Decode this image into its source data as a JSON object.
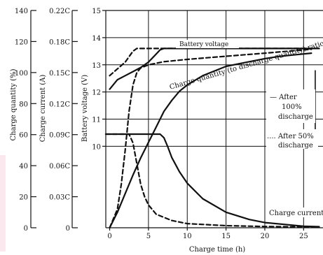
{
  "chart_data": {
    "type": "line",
    "title": "",
    "xlabel": "Charge time (h)",
    "xlim": [
      -0.5,
      27.5
    ],
    "x_ticks": [
      0,
      5,
      10,
      15,
      20,
      25
    ],
    "y_axes": [
      {
        "id": "quantity",
        "label": "Charge quantity (%)",
        "ticks": [
          "0",
          "20",
          "40",
          "60",
          "80",
          "100",
          "120",
          "140"
        ]
      },
      {
        "id": "current",
        "label": "Charge current (A)",
        "ticks": [
          "0",
          "0.03C",
          "0.06C",
          "0.09C",
          "0.12C",
          "0.15C",
          "0.18C",
          "0.22C"
        ]
      },
      {
        "id": "voltage",
        "label": "Battery voltage (V)",
        "ticks": [
          "10",
          "11",
          "12",
          "13",
          "14",
          "15"
        ],
        "ylim": [
          7,
          15
        ]
      }
    ],
    "annotations": {
      "battery_voltage": "Battery voltage",
      "charge_quantity_ratio": "Charge quantity (to discharge quantity) ratio",
      "after_100_line": "— After",
      "after_100_l2": "100%",
      "after_100_l3": "discharge",
      "after_50_line": ".... After 50%",
      "after_50_l2": "discharge",
      "charge_current": "Charge current"
    },
    "series": [
      {
        "legend": "After 100% discharge",
        "style": "solid",
        "axis": "voltage",
        "x": [
          0,
          1,
          2,
          3,
          4,
          5,
          6,
          6.5,
          7,
          10,
          15,
          20,
          25,
          27
        ],
        "y": [
          12.1,
          12.45,
          12.6,
          12.75,
          12.9,
          13.1,
          13.4,
          13.55,
          13.6,
          13.6,
          13.6,
          13.6,
          13.6,
          13.6
        ]
      },
      {
        "legend": "After 50% discharge",
        "style": "dashed",
        "axis": "voltage",
        "x": [
          0,
          1,
          2,
          2.5,
          3,
          3.5,
          4,
          10,
          15,
          20,
          25,
          27
        ],
        "y": [
          12.6,
          12.85,
          13.1,
          13.3,
          13.5,
          13.6,
          13.6,
          13.6,
          13.6,
          13.6,
          13.6,
          13.6
        ]
      },
      {
        "legend": "After 100% discharge",
        "style": "solid",
        "axis": "quantity",
        "x": [
          0,
          1,
          2,
          3,
          4,
          5,
          6,
          7,
          8,
          9,
          10,
          12,
          15,
          18,
          20,
          22,
          24,
          26
        ],
        "y": [
          0,
          10,
          22,
          34,
          45,
          55,
          65,
          75,
          82,
          88,
          92,
          98,
          104,
          107,
          109,
          110.5,
          111.5,
          112.5
        ]
      },
      {
        "legend": "After 50% discharge",
        "style": "dashed",
        "axis": "quantity",
        "x": [
          0,
          1,
          1.5,
          2,
          2.5,
          3,
          3.5,
          4,
          5,
          7,
          10,
          15,
          20,
          26
        ],
        "y": [
          0,
          12,
          28,
          50,
          75,
          92,
          100,
          103,
          105,
          107,
          108.5,
          110.5,
          112.5,
          115
        ]
      },
      {
        "legend": "After 100% discharge",
        "style": "solid",
        "axis": "current",
        "x": [
          -0.5,
          6.5,
          7,
          7.5,
          8,
          9,
          10,
          12,
          15,
          18,
          20,
          25,
          27
        ],
        "y": [
          0.0905,
          0.0905,
          0.087,
          0.078,
          0.068,
          0.054,
          0.043,
          0.028,
          0.015,
          0.008,
          0.005,
          0.0015,
          0.001
        ]
      },
      {
        "legend": "After 50% discharge",
        "style": "dashed",
        "axis": "current",
        "x": [
          -0.5,
          2.5,
          3,
          3.5,
          4,
          4.5,
          5,
          6,
          8,
          10,
          15,
          20,
          25,
          27
        ],
        "y": [
          0.0905,
          0.0905,
          0.082,
          0.062,
          0.042,
          0.03,
          0.022,
          0.013,
          0.007,
          0.004,
          0.002,
          0.0012,
          0.0008,
          0.0006
        ]
      }
    ],
    "grid": true,
    "legend_position": "right"
  }
}
